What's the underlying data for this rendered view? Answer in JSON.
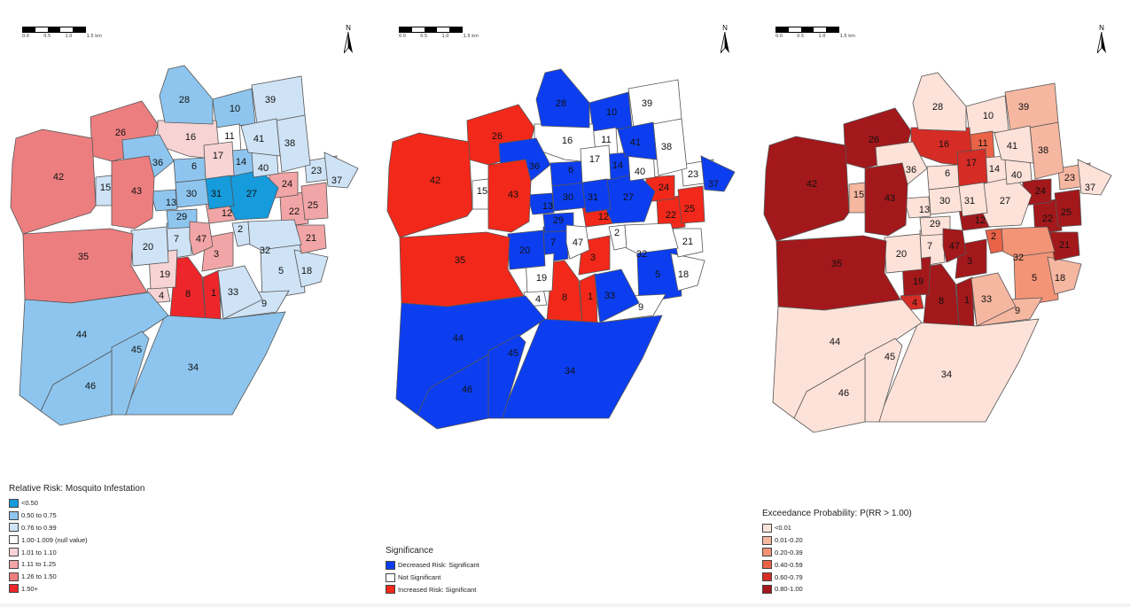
{
  "scale": {
    "ticks": [
      "0.0",
      "0.5",
      "1.0",
      "1.5 km"
    ]
  },
  "north_label": "N",
  "colors": {
    "rr": {
      "lt050": "#169bdc",
      "c050": "#8ec5ee",
      "c076": "#cfe3f6",
      "null": "#ffffff",
      "c101": "#f7d3d4",
      "c111": "#f2a5a6",
      "c126": "#ed7e80",
      "c150": "#ec262b"
    },
    "sig": {
      "dec": "#0c3ef0",
      "ns": "#ffffff",
      "inc": "#f2281a"
    },
    "exc": {
      "p0": "#fde2d9",
      "p1": "#f6b7a1",
      "p2": "#f39477",
      "p3": "#ea6346",
      "p4": "#d52c26",
      "p5": "#a3181b"
    },
    "border": "#555555"
  },
  "maps": [
    {
      "id": "rr",
      "legend": {
        "title": "Relative Risk: Mosquito Infestation",
        "items": [
          {
            "label": "<0.50",
            "color": "#169bdc"
          },
          {
            "label": "0.50 to 0.75",
            "color": "#8ec5ee"
          },
          {
            "label": "0.76 to 0.99",
            "color": "#cfe3f6"
          },
          {
            "label": "1.00-1.009 (null value)",
            "color": "#ffffff"
          },
          {
            "label": "1.01 to 1.10",
            "color": "#f7d3d4"
          },
          {
            "label": "1.11 to 1.25",
            "color": "#f2a5a6"
          },
          {
            "label": "1.26 to 1.50",
            "color": "#ed7e80"
          },
          {
            "label": "1.50+",
            "color": "#ec262b"
          }
        ]
      }
    },
    {
      "id": "sig",
      "legend": {
        "title": "Significance",
        "items": [
          {
            "label": "Decreased Risk: Significant",
            "color": "#0c3ef0"
          },
          {
            "label": "Not Significant",
            "color": "#ffffff"
          },
          {
            "label": "Increased Risk: Significant",
            "color": "#f2281a"
          }
        ]
      }
    },
    {
      "id": "exc",
      "legend": {
        "title": "Exceedance Probability: P(RR > 1.00)",
        "items": [
          {
            "label": "<0.01",
            "color": "#fde2d9"
          },
          {
            "label": "0.01-0.20",
            "color": "#f6b7a1"
          },
          {
            "label": "0.20-0.39",
            "color": "#f39477"
          },
          {
            "label": "0.40-0.59",
            "color": "#ea6346"
          },
          {
            "label": "0.60-0.79",
            "color": "#d52c26"
          },
          {
            "label": "0.80-1.00",
            "color": "#a3181b"
          }
        ]
      }
    }
  ],
  "regions": [
    {
      "id": "1",
      "rr": "c150",
      "sig": "inc",
      "exc": "p5"
    },
    {
      "id": "2",
      "rr": "c076",
      "sig": "ns",
      "exc": "p3"
    },
    {
      "id": "3",
      "rr": "c111",
      "sig": "inc",
      "exc": "p5"
    },
    {
      "id": "4",
      "rr": "c101",
      "sig": "ns",
      "exc": "p4"
    },
    {
      "id": "5",
      "rr": "c076",
      "sig": "dec",
      "exc": "p2"
    },
    {
      "id": "6",
      "rr": "c050",
      "sig": "dec",
      "exc": "p0"
    },
    {
      "id": "7",
      "rr": "c076",
      "sig": "dec",
      "exc": "p0"
    },
    {
      "id": "8",
      "rr": "c150",
      "sig": "inc",
      "exc": "p5"
    },
    {
      "id": "9",
      "rr": "c076",
      "sig": "ns",
      "exc": "p1"
    },
    {
      "id": "10",
      "rr": "c050",
      "sig": "dec",
      "exc": "p0"
    },
    {
      "id": "11",
      "rr": "null",
      "sig": "ns",
      "exc": "p3"
    },
    {
      "id": "12",
      "rr": "c111",
      "sig": "inc",
      "exc": "p5"
    },
    {
      "id": "13",
      "rr": "c050",
      "sig": "dec",
      "exc": "p0"
    },
    {
      "id": "14",
      "rr": "c050",
      "sig": "dec",
      "exc": "p0"
    },
    {
      "id": "15",
      "rr": "c076",
      "sig": "ns",
      "exc": "p1"
    },
    {
      "id": "16",
      "rr": "c101",
      "sig": "ns",
      "exc": "p4"
    },
    {
      "id": "17",
      "rr": "c101",
      "sig": "ns",
      "exc": "p4"
    },
    {
      "id": "18",
      "rr": "c076",
      "sig": "ns",
      "exc": "p1"
    },
    {
      "id": "19",
      "rr": "c101",
      "sig": "ns",
      "exc": "p5"
    },
    {
      "id": "20",
      "rr": "c076",
      "sig": "dec",
      "exc": "p0"
    },
    {
      "id": "21",
      "rr": "c111",
      "sig": "ns",
      "exc": "p5"
    },
    {
      "id": "22",
      "rr": "c111",
      "sig": "inc",
      "exc": "p5"
    },
    {
      "id": "23",
      "rr": "c076",
      "sig": "ns",
      "exc": "p1"
    },
    {
      "id": "24",
      "rr": "c111",
      "sig": "inc",
      "exc": "p5"
    },
    {
      "id": "25",
      "rr": "c111",
      "sig": "inc",
      "exc": "p5"
    },
    {
      "id": "26",
      "rr": "c126",
      "sig": "inc",
      "exc": "p5"
    },
    {
      "id": "27",
      "rr": "lt050",
      "sig": "dec",
      "exc": "p0"
    },
    {
      "id": "28",
      "rr": "c050",
      "sig": "dec",
      "exc": "p0"
    },
    {
      "id": "29",
      "rr": "c050",
      "sig": "dec",
      "exc": "p0"
    },
    {
      "id": "30",
      "rr": "c050",
      "sig": "dec",
      "exc": "p0"
    },
    {
      "id": "31",
      "rr": "lt050",
      "sig": "dec",
      "exc": "p0"
    },
    {
      "id": "32",
      "rr": "c076",
      "sig": "ns",
      "exc": "p2"
    },
    {
      "id": "33",
      "rr": "c076",
      "sig": "dec",
      "exc": "p1"
    },
    {
      "id": "34",
      "rr": "c050",
      "sig": "dec",
      "exc": "p0"
    },
    {
      "id": "35",
      "rr": "c126",
      "sig": "inc",
      "exc": "p5"
    },
    {
      "id": "36",
      "rr": "c050",
      "sig": "dec",
      "exc": "p0"
    },
    {
      "id": "37",
      "rr": "c076",
      "sig": "dec",
      "exc": "p0"
    },
    {
      "id": "38",
      "rr": "c076",
      "sig": "ns",
      "exc": "p1"
    },
    {
      "id": "39",
      "rr": "c076",
      "sig": "ns",
      "exc": "p1"
    },
    {
      "id": "40",
      "rr": "c076",
      "sig": "ns",
      "exc": "p0"
    },
    {
      "id": "41",
      "rr": "c076",
      "sig": "dec",
      "exc": "p0"
    },
    {
      "id": "42",
      "rr": "c126",
      "sig": "inc",
      "exc": "p5"
    },
    {
      "id": "43",
      "rr": "c126",
      "sig": "inc",
      "exc": "p5"
    },
    {
      "id": "44",
      "rr": "c050",
      "sig": "dec",
      "exc": "p0"
    },
    {
      "id": "45",
      "rr": "c050",
      "sig": "dec",
      "exc": "p0"
    },
    {
      "id": "46",
      "rr": "c050",
      "sig": "dec",
      "exc": "p0"
    },
    {
      "id": "47",
      "rr": "c111",
      "sig": "ns",
      "exc": "p5"
    }
  ]
}
